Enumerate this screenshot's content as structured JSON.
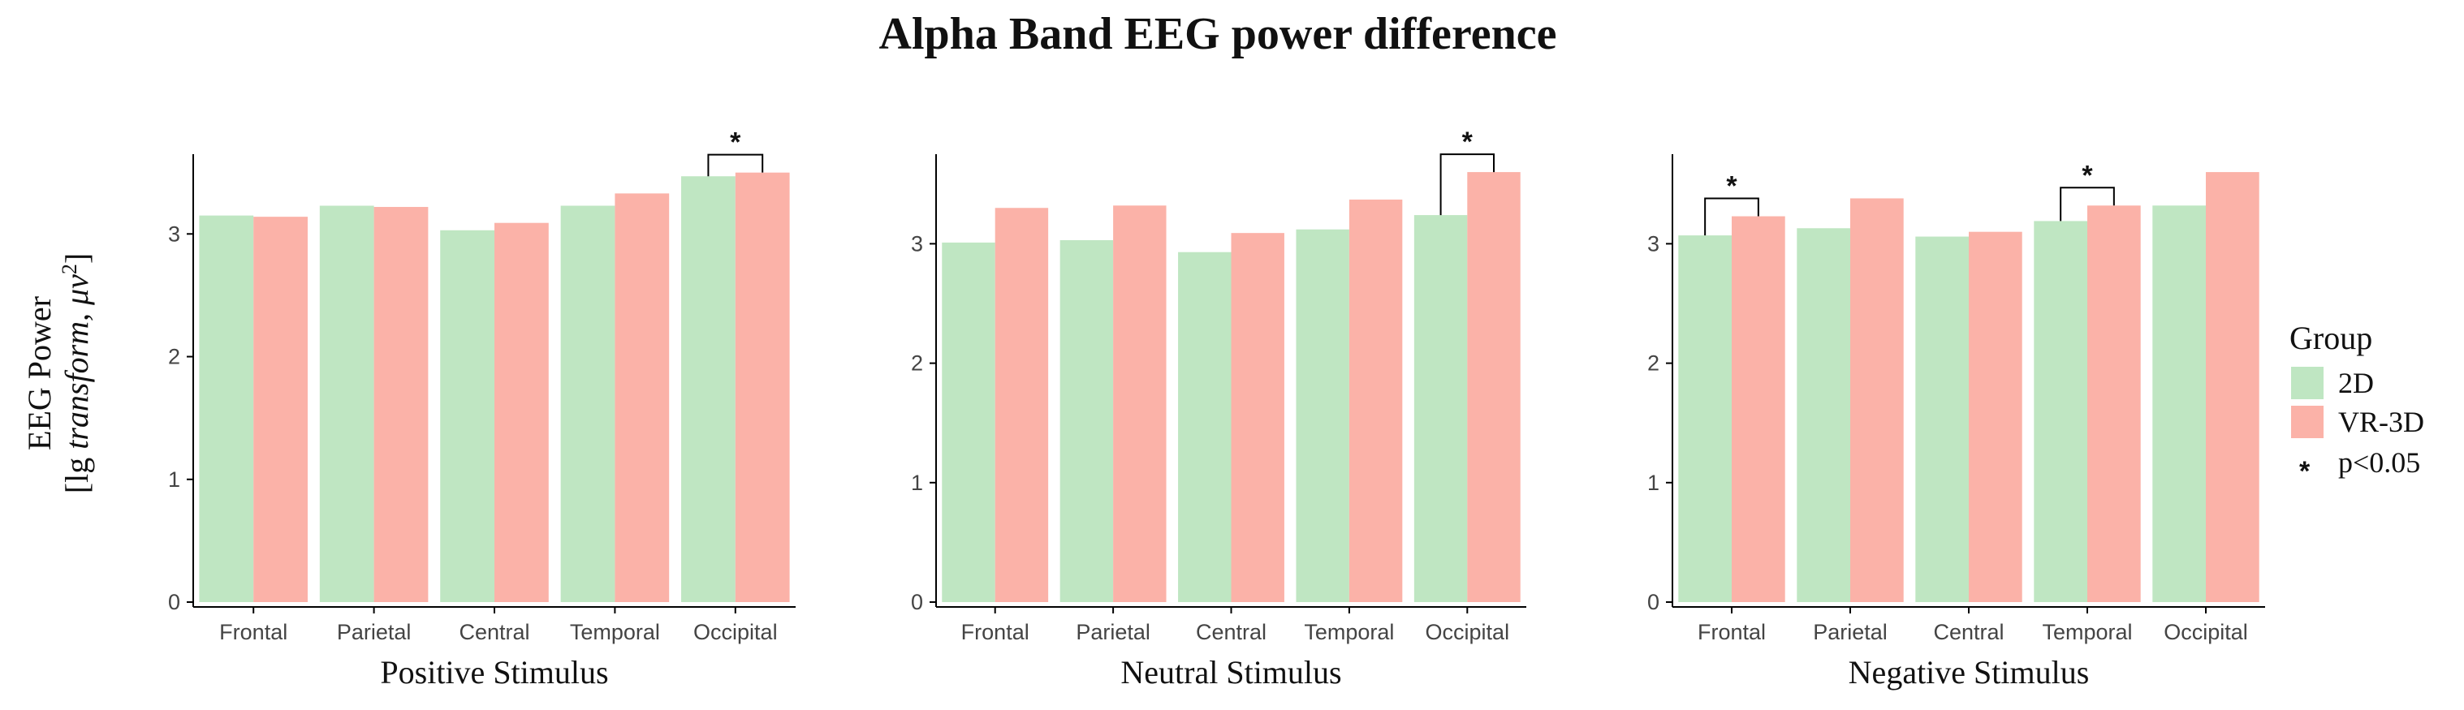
{
  "title": "Alpha Band EEG power difference",
  "ylabel": {
    "line1": "EEG Power",
    "line2_prefix": "[lg ",
    "line2_italic": "transform, μv",
    "line2_sup": "2",
    "line2_suffix": "]"
  },
  "legend": {
    "title": "Group",
    "items": [
      {
        "label": "2D",
        "color": "#bfe6c2"
      },
      {
        "label": "VR-3D",
        "color": "#fbb2a8"
      }
    ],
    "sig_symbol": "*",
    "sig_label": "p<0.05"
  },
  "chart_data": [
    {
      "type": "bar",
      "xlabel": "Positive Stimulus",
      "categories": [
        "Frontal",
        "Parietal",
        "Central",
        "Temporal",
        "Occipital"
      ],
      "series": [
        {
          "name": "2D",
          "values": [
            3.15,
            3.23,
            3.03,
            3.23,
            3.47
          ]
        },
        {
          "name": "VR-3D",
          "values": [
            3.14,
            3.22,
            3.09,
            3.33,
            3.5
          ]
        }
      ],
      "ylim": [
        0,
        3.65
      ],
      "yticks": [
        0,
        1,
        2,
        3
      ],
      "significant": [
        "Occipital"
      ]
    },
    {
      "type": "bar",
      "xlabel": "Neutral Stimulus",
      "categories": [
        "Frontal",
        "Parietal",
        "Central",
        "Temporal",
        "Occipital"
      ],
      "series": [
        {
          "name": "2D",
          "values": [
            3.01,
            3.03,
            2.93,
            3.12,
            3.24
          ]
        },
        {
          "name": "VR-3D",
          "values": [
            3.3,
            3.32,
            3.09,
            3.37,
            3.6
          ]
        }
      ],
      "ylim": [
        0,
        3.75
      ],
      "yticks": [
        0,
        1,
        2,
        3
      ],
      "significant": [
        "Occipital"
      ]
    },
    {
      "type": "bar",
      "xlabel": "Negative Stimulus",
      "categories": [
        "Frontal",
        "Parietal",
        "Central",
        "Temporal",
        "Occipital"
      ],
      "series": [
        {
          "name": "2D",
          "values": [
            3.07,
            3.13,
            3.06,
            3.19,
            3.32
          ]
        },
        {
          "name": "VR-3D",
          "values": [
            3.23,
            3.38,
            3.1,
            3.32,
            3.6
          ]
        }
      ],
      "ylim": [
        0,
        3.75
      ],
      "yticks": [
        0,
        1,
        2,
        3
      ],
      "significant": [
        "Frontal",
        "Temporal"
      ]
    }
  ]
}
